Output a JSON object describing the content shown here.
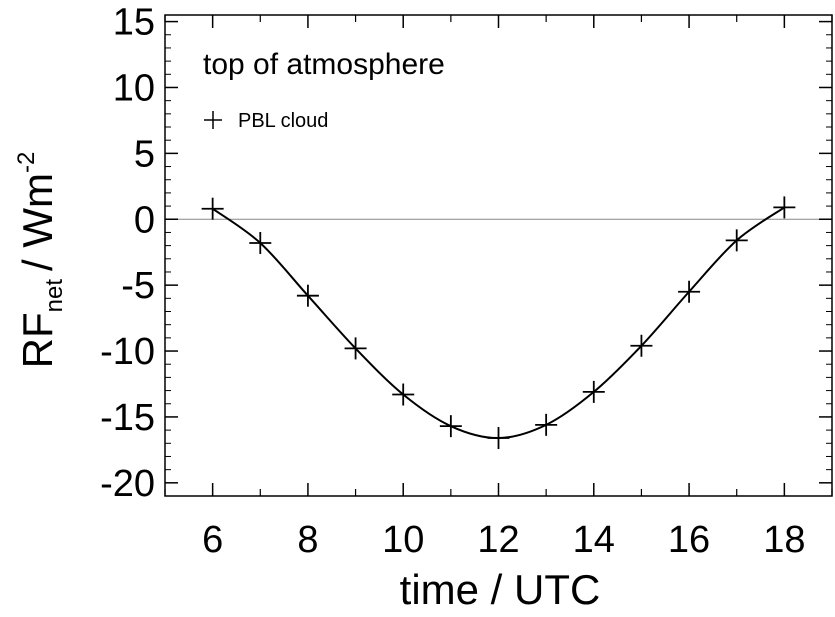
{
  "chart_data": {
    "type": "line",
    "annotation": "top of atmosphere",
    "xlabel": "time / UTC",
    "ylabel": {
      "main": "RF",
      "subscript": "net",
      "unit": "/ Wm",
      "superscript": "-2"
    },
    "xlim": [
      5,
      19
    ],
    "ylim": [
      -21,
      15.5
    ],
    "xticks": [
      6,
      8,
      10,
      12,
      14,
      16,
      18
    ],
    "yticks": [
      15,
      10,
      5,
      0,
      -5,
      -10,
      -15,
      -20
    ],
    "zero_line": true,
    "legend": {
      "position": "top-left",
      "marker": "+"
    },
    "series": [
      {
        "name": "PBL cloud",
        "marker": "+",
        "color": "#000000",
        "x": [
          6,
          7,
          8,
          9,
          10,
          11,
          12,
          13,
          14,
          15,
          16,
          17,
          18
        ],
        "y": [
          0.8,
          -1.8,
          -5.8,
          -9.8,
          -13.3,
          -15.7,
          -16.6,
          -15.6,
          -13.1,
          -9.6,
          -5.5,
          -1.6,
          0.9
        ]
      }
    ]
  }
}
